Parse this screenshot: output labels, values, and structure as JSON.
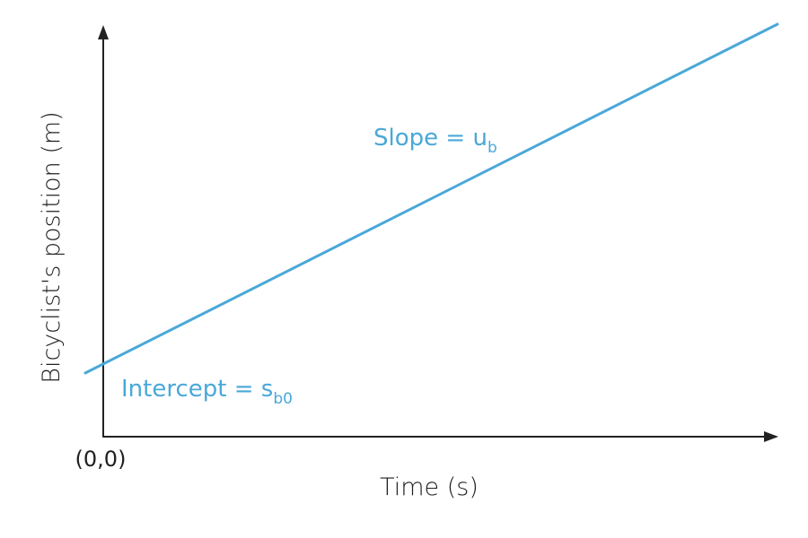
{
  "chart_data": {
    "type": "line",
    "xlabel": "Time (s)",
    "ylabel": "Bicyclist's position (m)",
    "origin_label": "(0,0)",
    "series": [
      {
        "color": "#4aa8d8",
        "line": "straight"
      }
    ],
    "annotations": {
      "slope": {
        "text": "Slope = u",
        "subscript": "b"
      },
      "intercept": {
        "text": "Intercept = s",
        "subscript": "b0"
      }
    },
    "grid": false,
    "legend": "none"
  }
}
